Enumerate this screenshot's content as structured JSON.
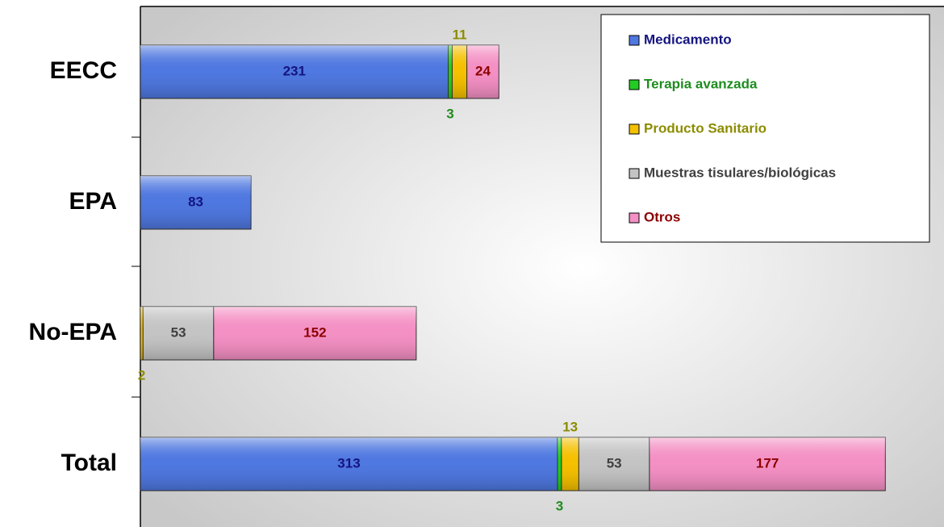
{
  "chart_data": {
    "type": "bar",
    "orientation": "horizontal",
    "stacked": true,
    "categories": [
      "EECC",
      "EPA",
      "No-EPA",
      "Total"
    ],
    "xlim": [
      0,
      600
    ],
    "legend": "upper right",
    "series": [
      {
        "name": "Medicamento",
        "color": "#4f78e0",
        "label_color": "#141480",
        "values": [
          231,
          83,
          null,
          313
        ]
      },
      {
        "name": "Terapia avanzada",
        "color": "#22cc22",
        "label_color": "#1e8c1e",
        "values": [
          3,
          null,
          null,
          3
        ]
      },
      {
        "name": "Producto Sanitario",
        "color": "#f5c000",
        "label_color": "#8c8c00",
        "values": [
          11,
          null,
          2,
          13
        ]
      },
      {
        "name": "Muestras tisulares/biológicas",
        "color": "#c4c4c4",
        "label_color": "#404040",
        "values": [
          null,
          null,
          53,
          53
        ]
      },
      {
        "name": "Otros",
        "color": "#f490c4",
        "label_color": "#8c0000",
        "values": [
          24,
          null,
          152,
          177
        ]
      }
    ]
  }
}
